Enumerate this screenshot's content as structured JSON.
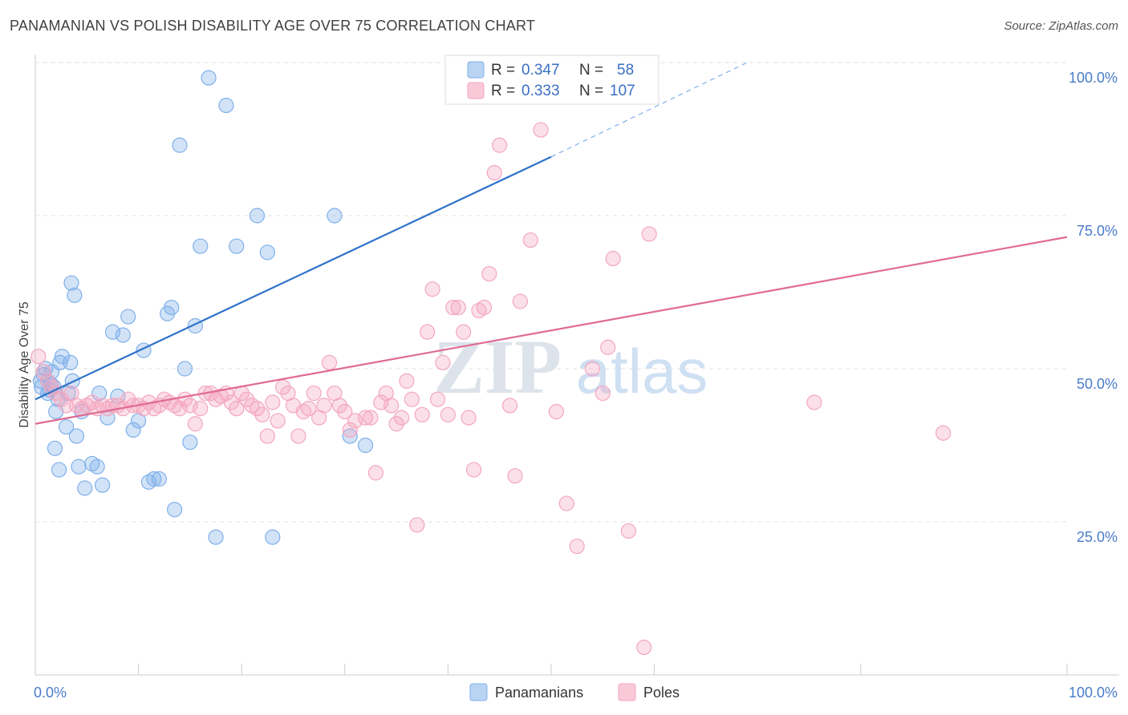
{
  "title": "PANAMANIAN VS POLISH DISABILITY AGE OVER 75 CORRELATION CHART",
  "source": "Source: ZipAtlas.com",
  "watermark": {
    "zip": "ZIP",
    "atlas": "atlas"
  },
  "legend_box": {
    "rows": [
      {
        "r_label": "R = ",
        "r_value": "0.347",
        "n_label": "N = ",
        "n_value": "58"
      },
      {
        "r_label": "R = ",
        "r_value": "0.333",
        "n_label": "N = ",
        "n_value": "107"
      }
    ]
  },
  "chart_data": {
    "type": "scatter",
    "ylabel": "Disability Age Over 75",
    "xlabel": "",
    "x_tick_labels": [
      "0.0%",
      "100.0%"
    ],
    "y_tick_labels": [
      "25.0%",
      "50.0%",
      "75.0%",
      "100.0%"
    ],
    "y_ticks": [
      25,
      50,
      75,
      100
    ],
    "xlim": [
      0,
      100
    ],
    "ylim": [
      0,
      100
    ],
    "grid": true,
    "legend_placement": "top-center",
    "colors": {
      "blue": "#7fb0ea",
      "blue_line": "#2f72c9",
      "pink": "#f4a6bf",
      "pink_line": "#e06b93"
    },
    "series": [
      {
        "name": "Panamanians",
        "color": "#7fb0ea",
        "r": 0.347,
        "n": 58,
        "trend": {
          "x0": 0,
          "y0": 45,
          "x1": 50,
          "y1": 84.6,
          "dash_x1": 69,
          "dash_y1": 100
        },
        "points": [
          [
            0.5,
            48
          ],
          [
            0.6,
            47
          ],
          [
            0.8,
            49
          ],
          [
            1.0,
            50
          ],
          [
            1.2,
            46
          ],
          [
            1.5,
            47.5
          ],
          [
            1.8,
            47
          ],
          [
            2.0,
            43
          ],
          [
            2.2,
            45
          ],
          [
            2.4,
            51
          ],
          [
            2.6,
            52
          ],
          [
            1.4,
            46.5
          ],
          [
            1.6,
            49.5
          ],
          [
            1.9,
            37
          ],
          [
            2.3,
            33.5
          ],
          [
            3.0,
            40.5
          ],
          [
            3.2,
            46
          ],
          [
            3.4,
            51
          ],
          [
            3.6,
            48
          ],
          [
            4.0,
            39
          ],
          [
            4.5,
            43
          ],
          [
            3.5,
            64
          ],
          [
            3.8,
            62
          ],
          [
            4.2,
            34
          ],
          [
            4.8,
            30.5
          ],
          [
            5.5,
            34.5
          ],
          [
            6.0,
            34
          ],
          [
            6.5,
            31
          ],
          [
            7.0,
            42
          ],
          [
            7.5,
            56
          ],
          [
            8.0,
            45.5
          ],
          [
            8.5,
            55.5
          ],
          [
            9.0,
            58.5
          ],
          [
            9.5,
            40
          ],
          [
            10.0,
            41.5
          ],
          [
            10.5,
            53
          ],
          [
            11.0,
            31.5
          ],
          [
            11.5,
            32
          ],
          [
            12.0,
            32
          ],
          [
            12.8,
            59
          ],
          [
            13.2,
            60
          ],
          [
            13.5,
            27
          ],
          [
            14.0,
            86.5
          ],
          [
            14.5,
            50
          ],
          [
            15.0,
            38
          ],
          [
            15.5,
            57
          ],
          [
            16.0,
            70
          ],
          [
            16.8,
            97.5
          ],
          [
            17.5,
            22.5
          ],
          [
            18.5,
            93
          ],
          [
            19.5,
            70
          ],
          [
            21.5,
            75
          ],
          [
            22.5,
            69
          ],
          [
            23.0,
            22.5
          ],
          [
            29.0,
            75
          ],
          [
            30.5,
            39
          ],
          [
            32.0,
            37.5
          ],
          [
            6.2,
            46
          ]
        ]
      },
      {
        "name": "Poles",
        "color": "#f4a6bf",
        "r": 0.333,
        "n": 107,
        "trend": {
          "x0": 0,
          "y0": 41,
          "x1": 100,
          "y1": 71.5
        },
        "points": [
          [
            0.3,
            52
          ],
          [
            0.8,
            49.5
          ],
          [
            1.2,
            48
          ],
          [
            1.6,
            47
          ],
          [
            2.0,
            46
          ],
          [
            2.5,
            45
          ],
          [
            3.0,
            44
          ],
          [
            3.5,
            46
          ],
          [
            4.0,
            44
          ],
          [
            4.5,
            43.5
          ],
          [
            5.0,
            44
          ],
          [
            5.5,
            44.5
          ],
          [
            6.0,
            43.5
          ],
          [
            6.5,
            44
          ],
          [
            7.0,
            43.5
          ],
          [
            7.5,
            44
          ],
          [
            8.0,
            44
          ],
          [
            8.5,
            43.5
          ],
          [
            9.0,
            45
          ],
          [
            9.5,
            44
          ],
          [
            10.0,
            44
          ],
          [
            10.5,
            43.5
          ],
          [
            11.0,
            44.5
          ],
          [
            11.5,
            43.5
          ],
          [
            12.0,
            44
          ],
          [
            12.5,
            45
          ],
          [
            13.0,
            44.5
          ],
          [
            13.5,
            44
          ],
          [
            14.0,
            43.5
          ],
          [
            14.5,
            45
          ],
          [
            15.0,
            44
          ],
          [
            15.5,
            41
          ],
          [
            16.0,
            43.5
          ],
          [
            16.5,
            46
          ],
          [
            17.0,
            46
          ],
          [
            17.5,
            45
          ],
          [
            18.0,
            45.5
          ],
          [
            18.5,
            46
          ],
          [
            19.0,
            44.5
          ],
          [
            19.5,
            43.5
          ],
          [
            20.0,
            46
          ],
          [
            20.5,
            45
          ],
          [
            21.0,
            44
          ],
          [
            21.5,
            43.5
          ],
          [
            22.0,
            42.5
          ],
          [
            22.5,
            39
          ],
          [
            23.0,
            44.5
          ],
          [
            23.5,
            41.5
          ],
          [
            24.0,
            47
          ],
          [
            24.5,
            46
          ],
          [
            25.0,
            44
          ],
          [
            25.5,
            39
          ],
          [
            26.0,
            43
          ],
          [
            26.5,
            43.5
          ],
          [
            27.0,
            46
          ],
          [
            27.5,
            42
          ],
          [
            28.0,
            44
          ],
          [
            28.5,
            51
          ],
          [
            29.0,
            46
          ],
          [
            29.5,
            44
          ],
          [
            30.0,
            43
          ],
          [
            30.5,
            40
          ],
          [
            31.0,
            41.5
          ],
          [
            32.0,
            42
          ],
          [
            32.5,
            42
          ],
          [
            33.0,
            33
          ],
          [
            33.5,
            44.5
          ],
          [
            34.0,
            46
          ],
          [
            34.5,
            44
          ],
          [
            35.0,
            41
          ],
          [
            35.5,
            42
          ],
          [
            36.0,
            48
          ],
          [
            36.5,
            45
          ],
          [
            37.0,
            24.5
          ],
          [
            37.5,
            42.5
          ],
          [
            38.0,
            56
          ],
          [
            38.5,
            63
          ],
          [
            39.0,
            45
          ],
          [
            39.5,
            51
          ],
          [
            40.0,
            42.5
          ],
          [
            40.5,
            60
          ],
          [
            41.0,
            60
          ],
          [
            41.5,
            56
          ],
          [
            42.0,
            42
          ],
          [
            42.5,
            33.5
          ],
          [
            43.0,
            59.5
          ],
          [
            43.5,
            60
          ],
          [
            44.0,
            65.5
          ],
          [
            44.5,
            82
          ],
          [
            45.0,
            86.5
          ],
          [
            46.0,
            44
          ],
          [
            46.5,
            32.5
          ],
          [
            47.0,
            61
          ],
          [
            48.0,
            71
          ],
          [
            49.0,
            89
          ],
          [
            50.5,
            43
          ],
          [
            51.5,
            28
          ],
          [
            52.5,
            21
          ],
          [
            54.0,
            50
          ],
          [
            55.0,
            46
          ],
          [
            56.0,
            68
          ],
          [
            57.5,
            23.5
          ],
          [
            59.5,
            72
          ],
          [
            59.0,
            4.5
          ],
          [
            75.5,
            44.5
          ],
          [
            88.0,
            39.5
          ],
          [
            55.5,
            53.5
          ]
        ]
      }
    ]
  },
  "bottom_legend": [
    {
      "label": "Panamanians",
      "color": "#7fb0ea"
    },
    {
      "label": "Poles",
      "color": "#f4a6bf"
    }
  ]
}
